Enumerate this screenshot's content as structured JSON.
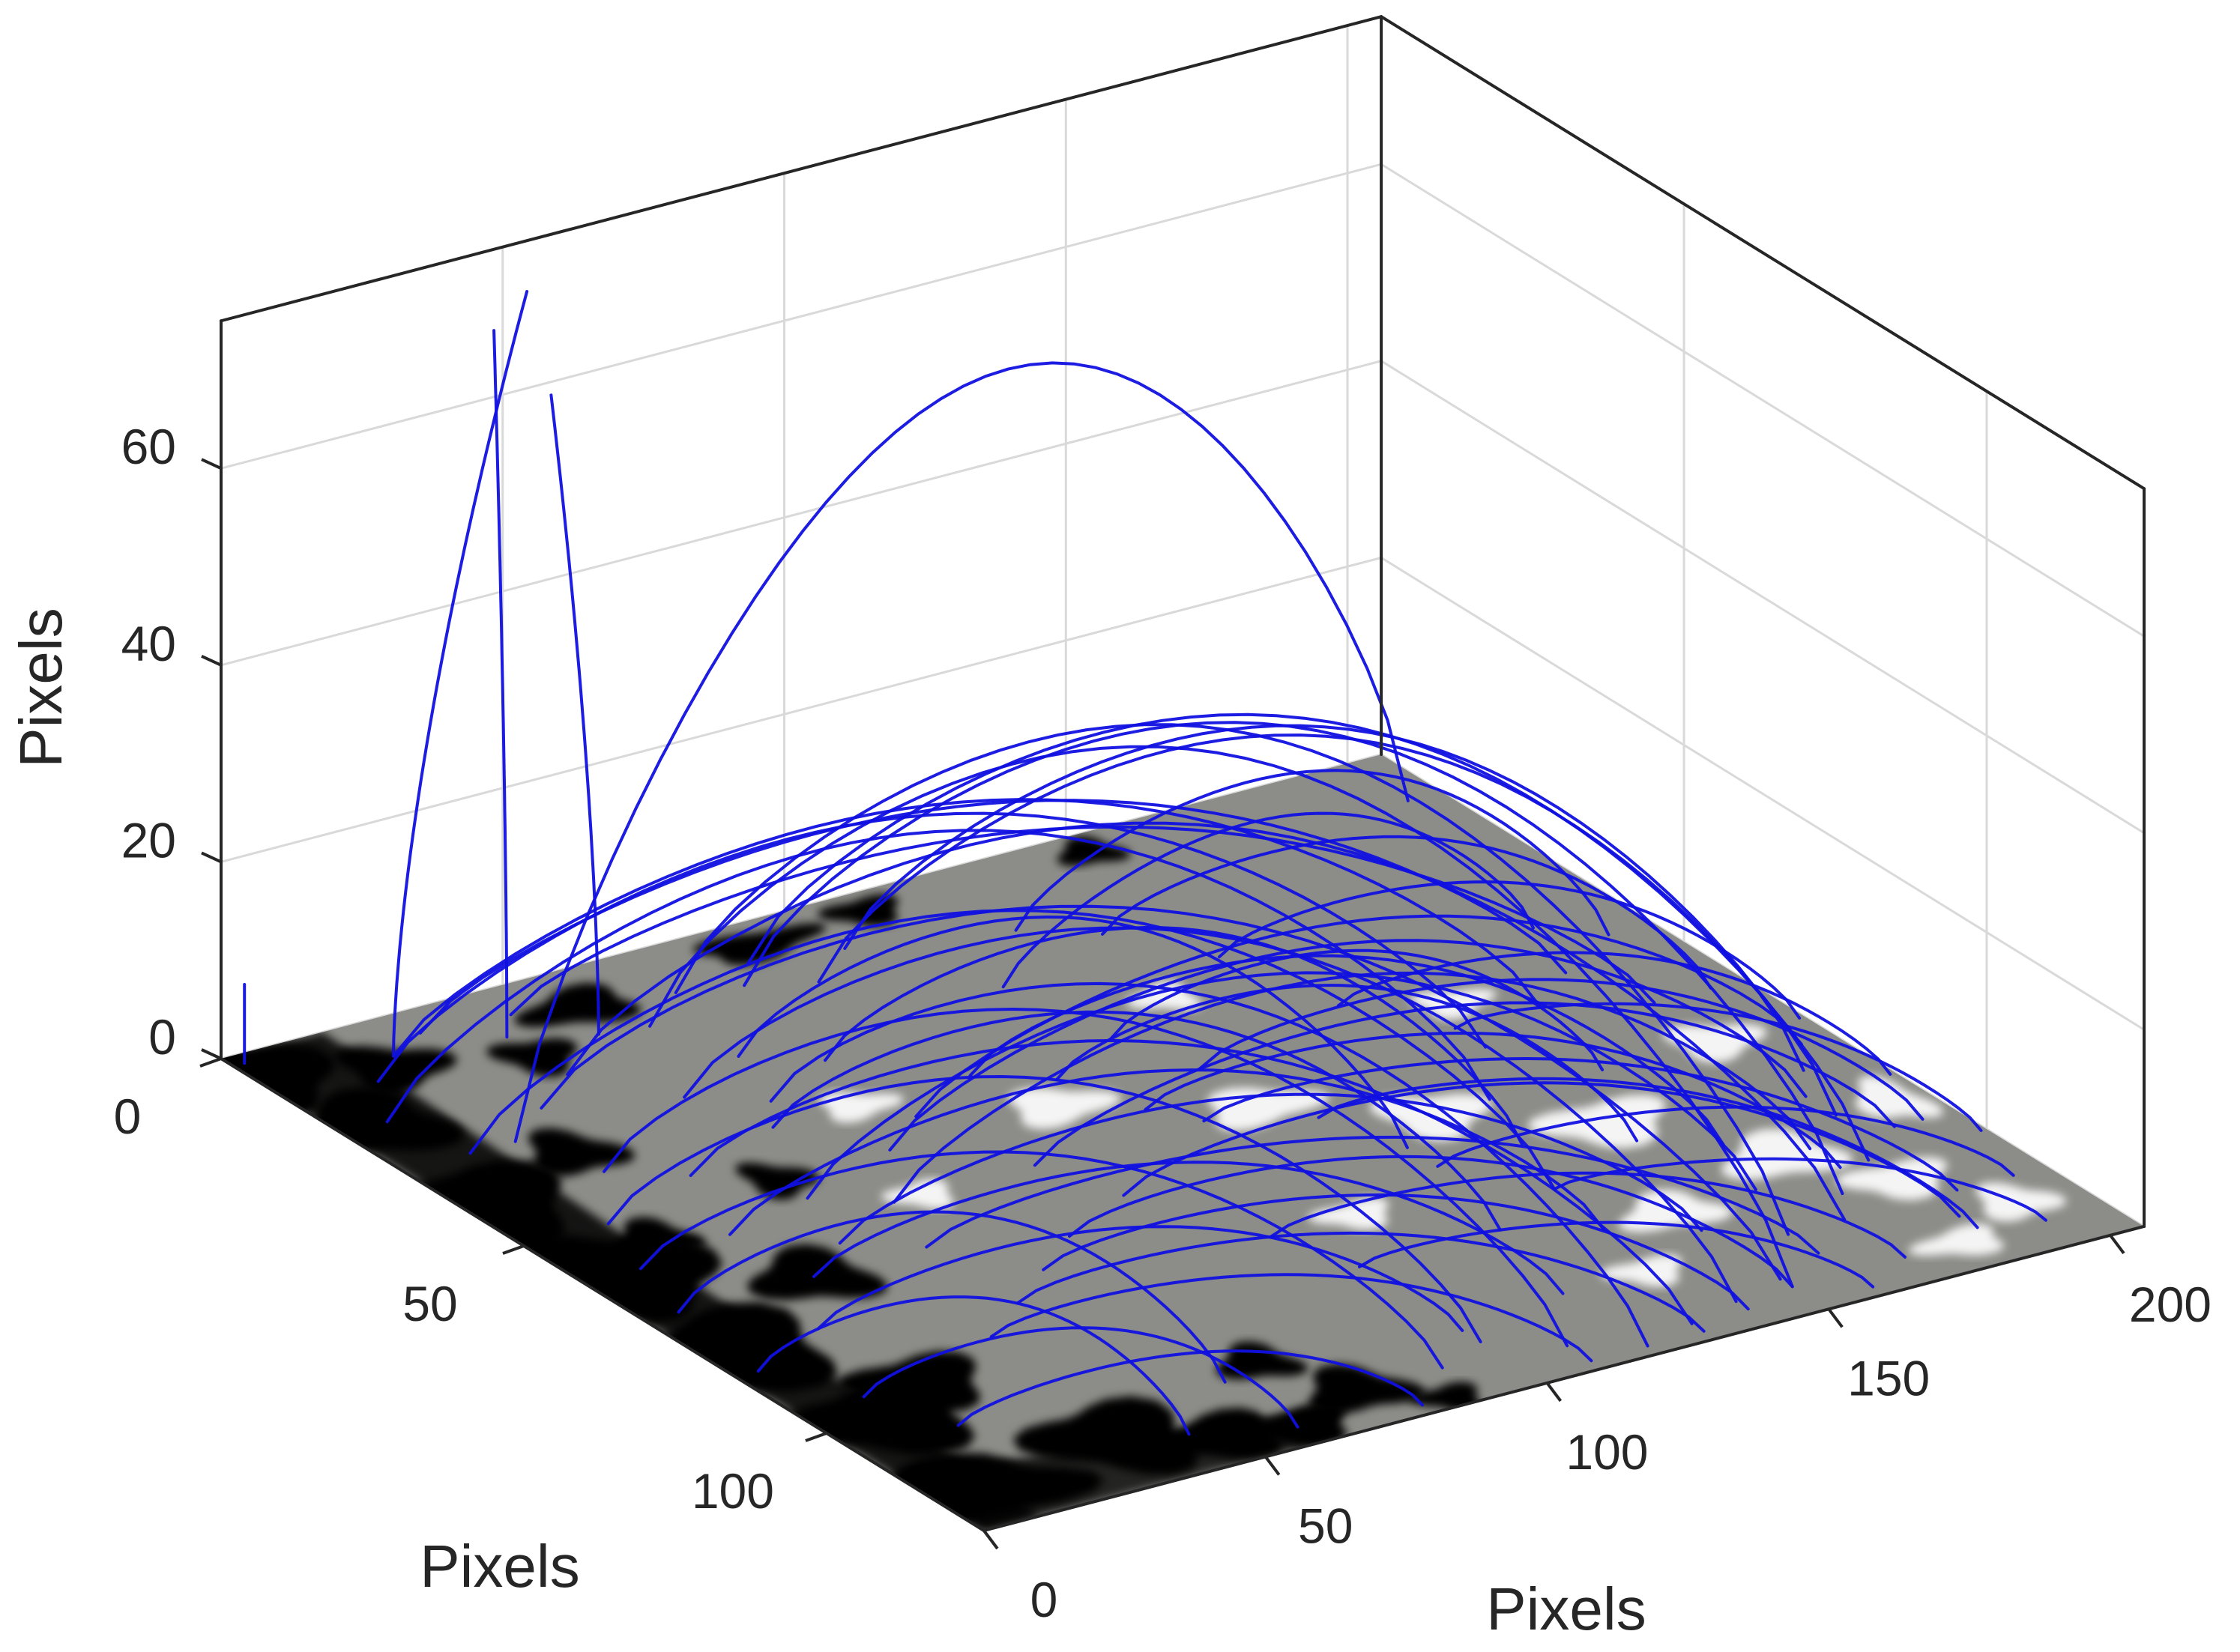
{
  "chart_data": {
    "type": "3d-line",
    "title": "",
    "description": "3D magnetic field line extrapolation over a grayscale magnetogram floor",
    "xlabel": "Pixels",
    "ylabel": "Pixels",
    "zlabel": "Pixels",
    "xlim": [
      0,
      206
    ],
    "ylim": [
      0,
      126
    ],
    "zlim": [
      0,
      75
    ],
    "x_ticks": [
      0,
      50,
      100,
      150,
      200
    ],
    "y_ticks": [
      0,
      50,
      100
    ],
    "z_ticks": [
      0,
      20,
      40,
      60
    ],
    "grid": true,
    "floor": {
      "type": "grayscale-image",
      "base_color": "#8c8c88",
      "negative_color": "#050505",
      "positive_color": "#f4f4f4",
      "negative_patches": [
        [
          2,
          5,
          10,
          8
        ],
        [
          5,
          20,
          12,
          7
        ],
        [
          3,
          40,
          14,
          9
        ],
        [
          8,
          60,
          12,
          10
        ],
        [
          4,
          80,
          16,
          9
        ],
        [
          10,
          100,
          14,
          8
        ],
        [
          6,
          118,
          18,
          7
        ],
        [
          20,
          10,
          8,
          5
        ],
        [
          25,
          35,
          7,
          5
        ],
        [
          30,
          70,
          9,
          6
        ],
        [
          22,
          95,
          10,
          6
        ],
        [
          35,
          115,
          12,
          8
        ],
        [
          48,
          120,
          10,
          5
        ],
        [
          60,
          122,
          9,
          4
        ],
        [
          75,
          118,
          8,
          5
        ],
        [
          40,
          15,
          6,
          4
        ],
        [
          55,
          8,
          9,
          4
        ],
        [
          90,
          5,
          10,
          3
        ],
        [
          110,
          4,
          6,
          3
        ],
        [
          150,
          4,
          5,
          3
        ],
        [
          68,
          108,
          6,
          4
        ],
        [
          85,
          124,
          5,
          3
        ],
        [
          18,
          55,
          6,
          4
        ],
        [
          45,
          50,
          5,
          4
        ]
      ],
      "positive_patches": [
        [
          70,
          40,
          6,
          3
        ],
        [
          95,
          50,
          8,
          4
        ],
        [
          120,
          60,
          9,
          4
        ],
        [
          140,
          70,
          8,
          5
        ],
        [
          160,
          80,
          10,
          5
        ],
        [
          175,
          95,
          9,
          5
        ],
        [
          185,
          105,
          8,
          4
        ],
        [
          190,
          70,
          7,
          4
        ],
        [
          165,
          50,
          6,
          3
        ],
        [
          130,
          35,
          5,
          3
        ],
        [
          150,
          100,
          8,
          4
        ],
        [
          180,
          120,
          7,
          3
        ],
        [
          195,
          115,
          6,
          4
        ],
        [
          110,
          85,
          6,
          3
        ],
        [
          60,
          60,
          5,
          3
        ],
        [
          200,
          90,
          5,
          5
        ],
        [
          135,
          110,
          6,
          3
        ]
      ]
    },
    "line_color": "#1010e0",
    "field_lines": {
      "note": "closed loops: [x0, y0, x1, y1, apex_z]; open lines: [x0, y0, x1, y1, z_top]",
      "closed": [
        [
          20,
          30,
          200,
          10,
          62
        ],
        [
          60,
          15,
          150,
          120,
          42
        ],
        [
          70,
          10,
          160,
          110,
          40
        ],
        [
          80,
          12,
          175,
          105,
          38
        ],
        [
          85,
          8,
          185,
          100,
          36
        ],
        [
          90,
          15,
          190,
          90,
          33
        ],
        [
          100,
          10,
          195,
          80,
          30
        ],
        [
          40,
          20,
          170,
          110,
          34
        ],
        [
          30,
          25,
          150,
          118,
          30
        ],
        [
          50,
          30,
          140,
          120,
          28
        ],
        [
          60,
          35,
          120,
          124,
          24
        ],
        [
          35,
          45,
          130,
          122,
          22
        ],
        [
          25,
          40,
          110,
          120,
          26
        ],
        [
          15,
          50,
          100,
          115,
          22
        ],
        [
          10,
          60,
          90,
          118,
          18
        ],
        [
          45,
          55,
          165,
          100,
          24
        ],
        [
          55,
          60,
          180,
          95,
          22
        ],
        [
          65,
          50,
          190,
          85,
          20
        ],
        [
          75,
          45,
          200,
          75,
          18
        ],
        [
          80,
          60,
          195,
          95,
          16
        ],
        [
          85,
          70,
          185,
          115,
          14
        ],
        [
          90,
          40,
          170,
          90,
          17
        ],
        [
          100,
          45,
          160,
          85,
          14
        ],
        [
          105,
          55,
          180,
          100,
          12
        ],
        [
          110,
          60,
          190,
          110,
          11
        ],
        [
          115,
          40,
          170,
          70,
          12
        ],
        [
          120,
          50,
          200,
          95,
          13
        ],
        [
          125,
          65,
          185,
          118,
          10
        ],
        [
          70,
          75,
          150,
          120,
          12
        ],
        [
          60,
          80,
          140,
          122,
          11
        ],
        [
          50,
          85,
          130,
          124,
          10
        ],
        [
          40,
          90,
          110,
          124,
          9
        ],
        [
          30,
          70,
          120,
          110,
          14
        ],
        [
          20,
          80,
          100,
          112,
          12
        ],
        [
          12,
          30,
          140,
          90,
          28
        ],
        [
          8,
          20,
          150,
          70,
          30
        ],
        [
          15,
          12,
          160,
          60,
          27
        ],
        [
          22,
          8,
          175,
          55,
          25
        ],
        [
          30,
          5,
          185,
          50,
          22
        ],
        [
          45,
          6,
          190,
          60,
          20
        ],
        [
          12,
          95,
          60,
          122,
          10
        ],
        [
          18,
          105,
          80,
          124,
          8
        ],
        [
          95,
          85,
          170,
          120,
          9
        ],
        [
          100,
          95,
          160,
          124,
          7
        ],
        [
          130,
          80,
          200,
          110,
          8
        ],
        [
          140,
          90,
          195,
          120,
          6
        ],
        [
          65,
          25,
          130,
          75,
          20
        ],
        [
          55,
          40,
          125,
          95,
          18
        ],
        [
          75,
          30,
          145,
          80,
          19
        ],
        [
          40,
          65,
          150,
          105,
          16
        ],
        [
          28,
          58,
          138,
          100,
          18
        ],
        [
          50,
          70,
          160,
          115,
          13
        ],
        [
          6,
          70,
          60,
          110,
          15
        ],
        [
          4,
          85,
          45,
          118,
          12
        ],
        [
          135,
          20,
          200,
          60,
          14
        ],
        [
          145,
          30,
          205,
          70,
          12
        ],
        [
          150,
          45,
          205,
          85,
          10
        ],
        [
          160,
          55,
          205,
          100,
          8
        ],
        [
          112,
          25,
          190,
          40,
          16
        ],
        [
          125,
          15,
          198,
          45,
          18
        ]
      ],
      "open": [
        [
          22,
          8,
          50,
          4,
          72
        ],
        [
          40,
          10,
          42,
          6,
          70
        ],
        [
          52,
          14,
          50,
          8,
          63
        ],
        [
          2,
          2,
          2,
          2,
          8
        ]
      ]
    }
  },
  "axes": {
    "x": {
      "label": "Pixels",
      "ticks": [
        "0",
        "50",
        "100",
        "150",
        "200"
      ]
    },
    "y": {
      "label": "Pixels",
      "ticks": [
        "0",
        "50",
        "100"
      ]
    },
    "z": {
      "label": "Pixels",
      "ticks": [
        "0",
        "20",
        "40",
        "60"
      ]
    }
  }
}
